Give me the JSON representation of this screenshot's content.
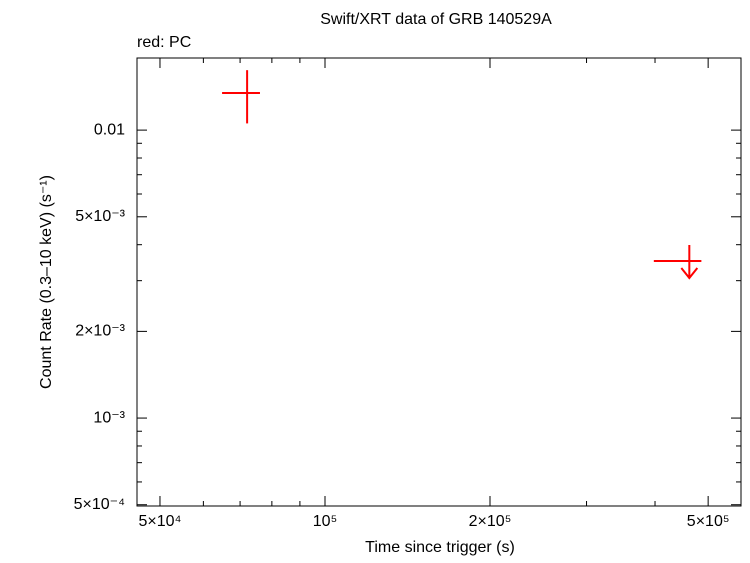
{
  "chart_data": {
    "type": "scatter",
    "title": "Swift/XRT data of GRB 140529A",
    "legend_text": "red: PC",
    "x_label": "Time since trigger (s)",
    "y_label": "Count Rate (0.3–10 keV) (s⁻¹)",
    "log_x": true,
    "log_y": true,
    "color": "#ff0000",
    "xlim": [
      45400,
      574000
    ],
    "ylim": [
      0.000495,
      0.0178
    ],
    "xticks": [
      {
        "value": 50000,
        "label": "5×10⁴"
      },
      {
        "value": 100000,
        "label": "10⁵"
      },
      {
        "value": 200000,
        "label": "2×10⁵"
      },
      {
        "value": 500000,
        "label": "5×10⁵"
      }
    ],
    "xminor": [
      60000,
      70000,
      80000,
      90000,
      300000,
      400000
    ],
    "yticks": [
      {
        "value": 0.0005,
        "label": "5×10⁻⁴"
      },
      {
        "value": 0.001,
        "label": "10⁻³"
      },
      {
        "value": 0.002,
        "label": "2×10⁻³"
      },
      {
        "value": 0.005,
        "label": "5×10⁻³"
      },
      0.01
    ],
    "yminor": [
      0.0006,
      0.0007,
      0.0008,
      0.0009,
      0.003,
      0.004,
      0.006,
      0.007,
      0.008,
      0.009
    ],
    "points": {
      "x": [
        72100
      ],
      "xerr_minus": [
        7200
      ],
      "xerr_plus": [
        4000
      ],
      "values": [
        0.01345
      ],
      "yerr_minus": [
        0.0029
      ],
      "yerr_plus": [
        0.0027
      ]
    },
    "upper_limits": {
      "x": [
        462000
      ],
      "xerr_minus": [
        64000
      ],
      "xerr_plus": [
        24000
      ],
      "values": [
        0.00351
      ]
    }
  }
}
